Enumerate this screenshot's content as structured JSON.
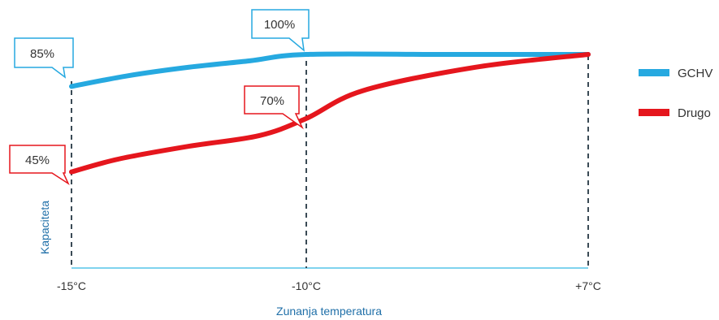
{
  "chart_data": {
    "type": "line",
    "title": "",
    "xlabel": "Zunanja temperatura",
    "ylabel": "Kapaciteta",
    "x_ticks": [
      "-15°C",
      "-10°C",
      "+7°C"
    ],
    "legend_position": "right",
    "grid": false,
    "series": [
      {
        "name": "GCHV",
        "color": "#26a9e0",
        "points": [
          [
            0,
            85
          ],
          [
            0.12,
            90
          ],
          [
            0.25,
            94
          ],
          [
            0.38,
            97
          ],
          [
            0.5,
            100
          ],
          [
            0.75,
            100
          ],
          [
            1.0,
            100
          ]
        ]
      },
      {
        "name": "Drugo",
        "color": "#e5161d",
        "points": [
          [
            0,
            45
          ],
          [
            0.1,
            51
          ],
          [
            0.25,
            57
          ],
          [
            0.4,
            62
          ],
          [
            0.5,
            70
          ],
          [
            0.6,
            83
          ],
          [
            0.8,
            94
          ],
          [
            1.0,
            100
          ]
        ]
      }
    ],
    "annotations": [
      {
        "label": "85%",
        "series": 0,
        "tick": 0,
        "value": 85
      },
      {
        "label": "100%",
        "series": 0,
        "tick": 1,
        "value": 100
      },
      {
        "label": "70%",
        "series": 1,
        "tick": 1,
        "value": 70
      },
      {
        "label": "45%",
        "series": 1,
        "tick": 0,
        "value": 45
      }
    ]
  }
}
